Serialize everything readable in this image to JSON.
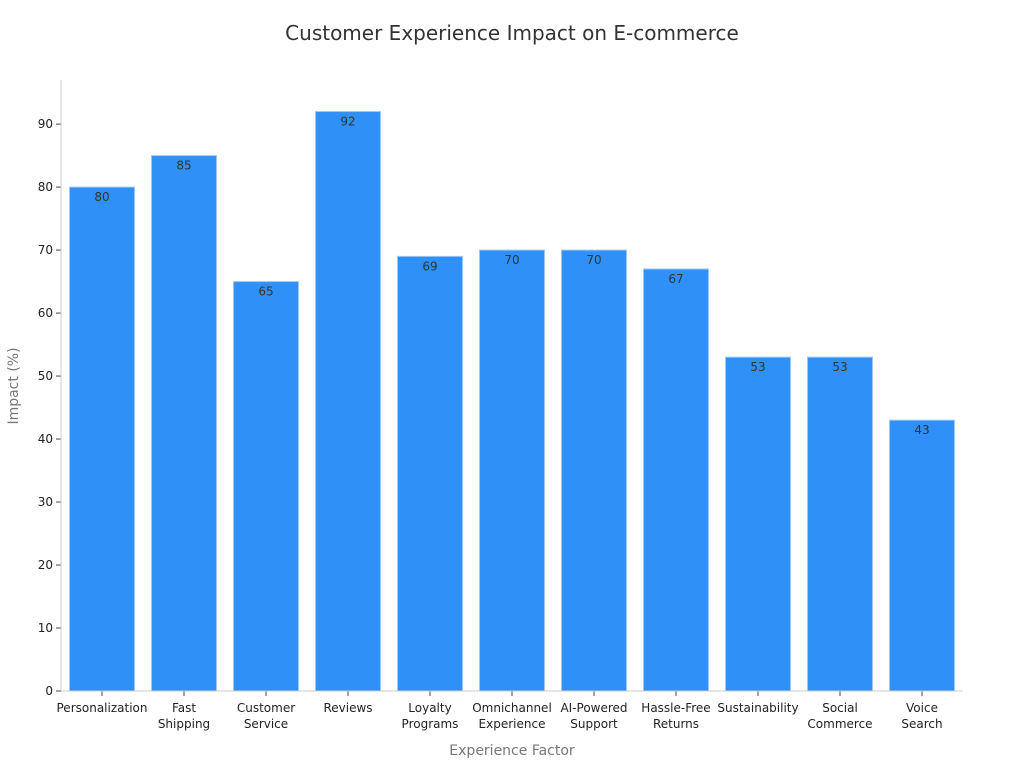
{
  "chart_data": {
    "type": "bar",
    "title": "Customer Experience Impact on E-commerce",
    "xlabel": "Experience Factor",
    "ylabel": "Impact (%)",
    "categories": [
      [
        "Personalization"
      ],
      [
        "Fast",
        "Shipping"
      ],
      [
        "Customer",
        "Service"
      ],
      [
        "Reviews"
      ],
      [
        "Loyalty",
        "Programs"
      ],
      [
        "Omnichannel",
        "Experience"
      ],
      [
        "AI-Powered",
        "Support"
      ],
      [
        "Hassle-Free",
        "Returns"
      ],
      [
        "Sustainability"
      ],
      [
        "Social",
        "Commerce"
      ],
      [
        "Voice",
        "Search"
      ]
    ],
    "values": [
      80,
      85,
      65,
      92,
      69,
      70,
      70,
      67,
      53,
      53,
      43
    ],
    "yticks": [
      0,
      10,
      20,
      30,
      40,
      50,
      60,
      70,
      80,
      90
    ],
    "ylim": [
      0,
      97
    ],
    "grid": false,
    "bar_color": "#2f91f7",
    "bar_edge_color": "#9ec9f5"
  }
}
